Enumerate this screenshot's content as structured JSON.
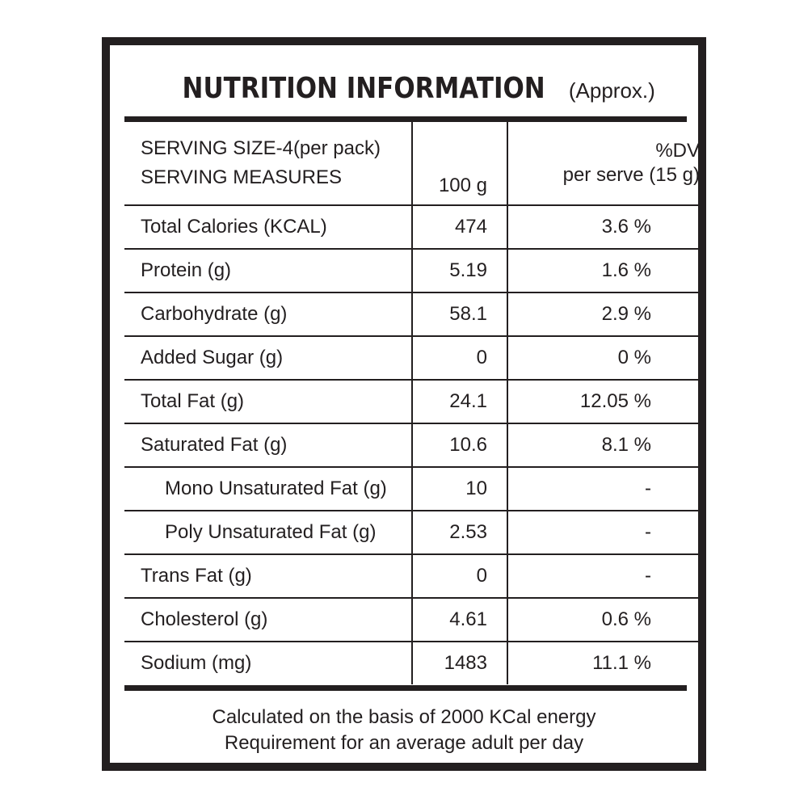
{
  "title": {
    "main": "NUTRITION INFORMATION",
    "sub": "(Approx.)"
  },
  "header": {
    "serving_size": "SERVING SIZE-4(per pack)",
    "serving_measures": "SERVING MEASURES",
    "amount": "100 g",
    "dv_line1": "%DV",
    "dv_line2": "per serve (15 g)"
  },
  "rows": [
    {
      "name": "Total Calories (KCAL)",
      "value": "474",
      "dv": "3.6 %"
    },
    {
      "name": "Protein (g)",
      "value": "5.19",
      "dv": "1.6 %"
    },
    {
      "name": "Carbohydrate (g)",
      "value": "58.1",
      "dv": "2.9 %"
    },
    {
      "name": "Added Sugar (g)",
      "value": "0",
      "dv": "0 %"
    },
    {
      "name": "Total Fat (g)",
      "value": "24.1",
      "dv": "12.05 %"
    },
    {
      "name": "Saturated Fat (g)",
      "value": "10.6",
      "dv": "8.1 %"
    },
    {
      "name": "Mono Unsaturated Fat (g)",
      "value": "10",
      "dv": "-"
    },
    {
      "name": "Poly Unsaturated Fat (g)",
      "value": "2.53",
      "dv": "-"
    },
    {
      "name": "Trans Fat (g)",
      "value": "0",
      "dv": "-"
    },
    {
      "name": "Cholesterol (g)",
      "value": "4.61",
      "dv": "0.6 %"
    },
    {
      "name": "Sodium (mg)",
      "value": "1483",
      "dv": "11.1 %"
    }
  ],
  "footnote": {
    "line1": "Calculated on the basis of 2000 KCal energy",
    "line2": "Requirement for an average adult per day"
  }
}
